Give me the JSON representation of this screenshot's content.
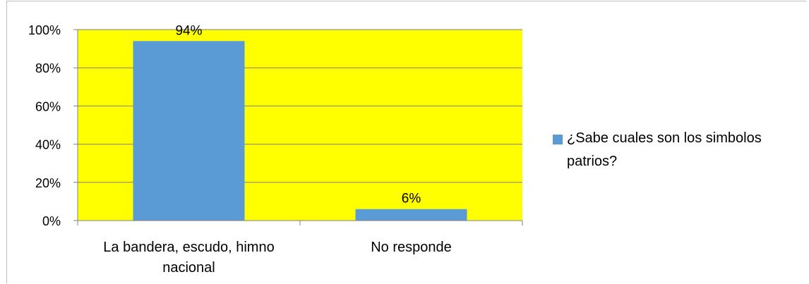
{
  "chart_data": {
    "type": "bar",
    "categories": [
      [
        "La bandera, escudo, himno",
        "nacional"
      ],
      [
        "No responde"
      ]
    ],
    "series": [
      {
        "name": "¿Sabe cuales son los simbolos patrios?",
        "values": [
          94,
          6
        ],
        "data_labels": [
          "94%",
          "6%"
        ]
      }
    ],
    "ylim": [
      0,
      100
    ],
    "yticks": [
      0,
      20,
      40,
      60,
      80,
      100
    ],
    "ytick_labels": [
      "0%",
      "20%",
      "40%",
      "60%",
      "80%",
      "100%"
    ],
    "grid": true,
    "legend_position": "right",
    "colors": {
      "bar": "#5b9bd5",
      "plot_background": "#ffff00",
      "gridline": "#808080",
      "axis": "#808080"
    }
  },
  "legend": {
    "label_line1": "¿Sabe cuales son los simbolos",
    "label_line2": "patrios?"
  }
}
